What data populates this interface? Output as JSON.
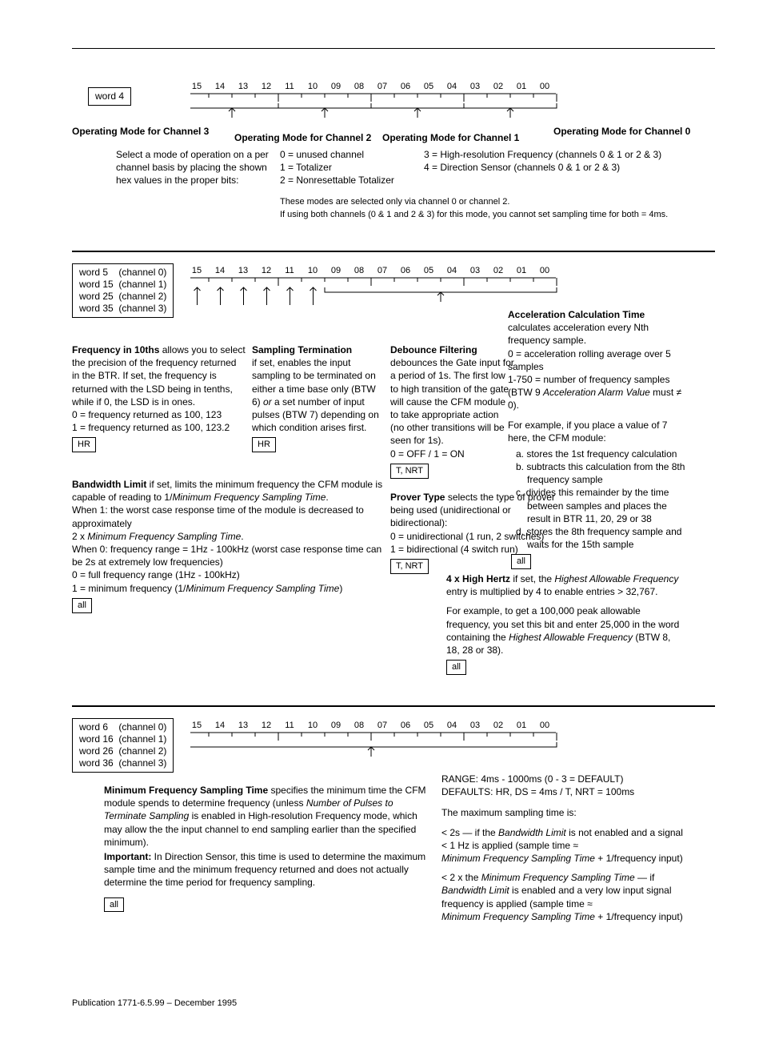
{
  "bits": [
    "15",
    "14",
    "13",
    "12",
    "11",
    "10",
    "09",
    "08",
    "07",
    "06",
    "05",
    "04",
    "03",
    "02",
    "01",
    "00"
  ],
  "sec1": {
    "word": "word 4",
    "ch3": "Operating Mode for Channel 3",
    "ch2": "Operating Mode for Channel 2",
    "ch1": "Operating Mode for Channel 1",
    "ch0": "Operating Mode for Channel 0",
    "seltxt": "Select a mode of operation on a per channel basis by placing the shown hex values in the proper bits:",
    "v0": "0 = unused channel",
    "v1": "1 = Totalizer",
    "v2": "2 = Nonresettable Totalizer",
    "v3": "3 = High-resolution Frequency (channels 0 & 1 or 2 & 3)",
    "v4": "4 = Direction Sensor (channels 0 & 1 or 2 & 3)",
    "note1": "These modes are selected only via channel 0 or channel 2.",
    "note2": "If using both channels (0 & 1 and 2 & 3) for this mode, you cannot set sampling time for both = 4ms."
  },
  "sec2": {
    "wbox": "word 5    (channel 0)\nword 15  (channel 1)\nword 25  (channel 2)\nword 35  (channel 3)",
    "freq_title": "Frequency in 10ths",
    "freq_body": " allows you to select the precision of the frequency returned in the BTR. If set, the frequency is returned with the LSD being in tenths, while if 0, the LSD is in ones.\n0 = frequency returned as 100, 123\n1 = frequency returned as 100, 123.2",
    "freq_tag": "HR",
    "bw_title": "Bandwidth Limit",
    "bw_body_a": " if set, limits the minimum frequency the CFM module is capable of reading to 1/",
    "bw_mfst": "Minimum Frequency Sampling Time",
    "bw_body_b": ".\nWhen 1: the worst case response time of the module is decreased to approximately\n2 x ",
    "bw_body_c": ".\nWhen 0:  frequency range = 1Hz - 100kHz (worst case response time can be 2s at extremely low frequencies)\n0 = full frequency range (1Hz - 100kHz)\n1 = minimum frequency (1/",
    "bw_body_d": ")",
    "bw_tag": "all",
    "samp_title": "Sampling Termination",
    "samp_body": "if set, enables the input sampling to be terminated on either a time base only (BTW 6) ",
    "samp_or": "or",
    "samp_body2": " a set number of input pulses (BTW 7) depending on which condition arises first.",
    "samp_tag": "HR",
    "deb_title": "Debounce Filtering",
    "deb_body": "debounces the Gate input for a period of 1s. The first low to high transition of the gate will cause the CFM module to take appropriate action (no other transitions will be seen for 1s).\n0 = OFF / 1 = ON",
    "deb_tag": "T, NRT",
    "prov_title": "Prover Type",
    "prov_body": " selects the type of prover being used (unidirectional or bidirectional):\n0 = unidirectional (1 run, 2 switches)\n1 = bidirectional (4 switch run)",
    "prov_tag": "T, NRT",
    "acc_title": "Acceleration Calculation Time",
    "acc_body1": "calculates acceleration every Nth frequency sample.\n0 = acceleration rolling average over 5 samples\n1-750 = number of frequency samples (BTW 9 ",
    "acc_aav": "Acceleration Alarm Value",
    "acc_body1b": " must ≠ 0).",
    "acc_body2": "For example, if you place a value of 7 here, the CFM module:",
    "acc_a": "a. stores the 1st frequency calculation",
    "acc_b": "b. subtracts this calculation from the 8th frequency sample",
    "acc_c": "c. divides this remainder by the time between samples and places the result in BTR 11, 20, 29 or 38",
    "acc_d": "d. stores the 8th frequency sample and waits for the 15th sample",
    "acc_tag": "all",
    "hh_title": "4 x High Hertz",
    "hh_body1": " if set, the ",
    "hh_haf": "Highest Allowable Frequency",
    "hh_body2": " entry is multiplied by 4 to enable entries > 32,767.",
    "hh_body3": "For example, to get a 100,000 peak allowable frequency, you set this bit and enter 25,000 in the word containing the ",
    "hh_body4": " (BTW 8, 18, 28 or 38).",
    "hh_tag": "all"
  },
  "sec3": {
    "wbox": "word 6    (channel 0)\nword 16  (channel 1)\nword 26  (channel 2)\nword 36  (channel 3)",
    "mfst_title": "Minimum Frequency Sampling Time",
    "mfst_body1": " specifies the minimum time the CFM module spends to determine frequency (unless ",
    "mfst_npts": "Number of Pulses to Terminate Sampling",
    "mfst_body2": " is enabled in High-resolution Frequency mode, which may allow the the input channel to end sampling earlier than the specified minimum).",
    "imp_title": "Important:",
    "imp_body": " In Direction Sensor, this time is used to determine the maximum sample time and the minimum frequency returned and does not actually determine the time period for frequency sampling.",
    "tag": "all",
    "range": "RANGE: 4ms - 1000ms (0 - 3 = DEFAULT)\nDEFAULTS: HR, DS = 4ms   /   T, NRT = 100ms",
    "maxline": "The maximum sampling time is:",
    "r1a": "< 2s — if the ",
    "r1_bw": "Bandwidth Limit",
    "r1b": " is not enabled and a signal < 1 Hz is applied (sample time  ≈",
    "r1_m": "Minimum Frequency Sampling Time",
    "r1c": " + 1/frequency input)",
    "r2a": "< 2 x the ",
    "r2b": " — if ",
    "r2c": " is enabled and a very low input signal frequency is applied (sample time  ≈",
    "r2d": " + 1/frequency input)"
  },
  "footer": "Publication 1771-6.5.99 – December 1995"
}
